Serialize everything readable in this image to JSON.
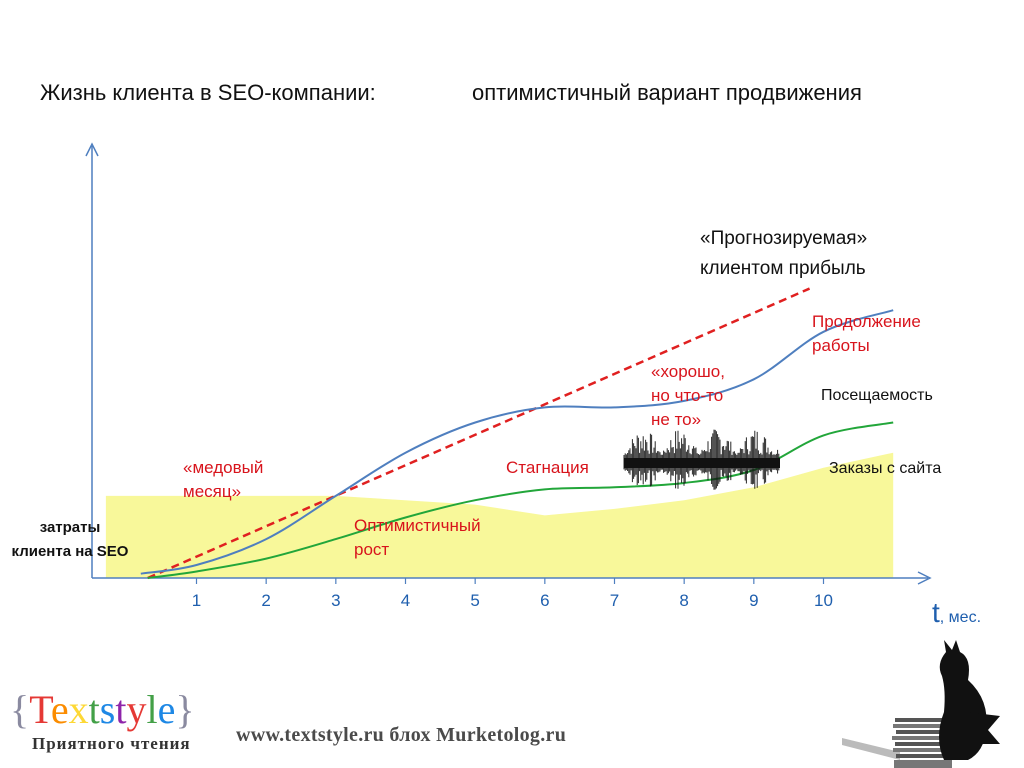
{
  "title": {
    "left": "Жизнь клиента в SEO-компании:",
    "right": "оптимистичный вариант продвижения"
  },
  "chart_data": {
    "type": "line",
    "x_ticks": [
      1,
      2,
      3,
      4,
      5,
      6,
      7,
      8,
      9,
      10
    ],
    "x_unit_symbol": "t",
    "x_unit_label": ", мес.",
    "xlim": [
      -0.5,
      11.5
    ],
    "ylim": [
      0,
      10
    ],
    "series": [
      {
        "name": "«Прогнозируемая» клиентом прибыль",
        "style": "dashed",
        "color": "#e02020",
        "points": [
          [
            0.3,
            0.0
          ],
          [
            9.8,
            6.7
          ]
        ]
      },
      {
        "name": "Посещаемость",
        "style": "solid",
        "color": "#4f7fbf",
        "points": [
          [
            0.2,
            0.1
          ],
          [
            1.0,
            0.3
          ],
          [
            2.0,
            0.9
          ],
          [
            3.0,
            1.9
          ],
          [
            4.0,
            2.9
          ],
          [
            5.0,
            3.6
          ],
          [
            6.0,
            3.95
          ],
          [
            7.0,
            3.95
          ],
          [
            8.0,
            4.1
          ],
          [
            9.0,
            4.6
          ],
          [
            10.0,
            5.7
          ],
          [
            11.0,
            6.2
          ]
        ]
      },
      {
        "name": "Заказы с сайта",
        "style": "solid",
        "color": "#22a63a",
        "points": [
          [
            0.3,
            0.0
          ],
          [
            1.0,
            0.15
          ],
          [
            2.0,
            0.45
          ],
          [
            3.0,
            0.9
          ],
          [
            4.0,
            1.4
          ],
          [
            5.0,
            1.8
          ],
          [
            6.0,
            2.05
          ],
          [
            7.0,
            2.1
          ],
          [
            8.0,
            2.2
          ],
          [
            9.0,
            2.5
          ],
          [
            10.0,
            3.3
          ],
          [
            11.0,
            3.6
          ]
        ]
      },
      {
        "name": "затраты клиента на SEO",
        "style": "area",
        "color": "#f8f89a",
        "points": [
          [
            -0.3,
            1.9
          ],
          [
            0.5,
            1.9
          ],
          [
            3.0,
            1.9
          ],
          [
            5.0,
            1.7
          ],
          [
            6.0,
            1.45
          ],
          [
            7.0,
            1.6
          ],
          [
            8.0,
            1.8
          ],
          [
            9.0,
            2.1
          ],
          [
            10.0,
            2.55
          ],
          [
            11.0,
            2.9
          ],
          [
            11.0,
            0
          ],
          [
            -0.3,
            0
          ]
        ]
      }
    ]
  },
  "annotations": {
    "forecast": [
      "«Прогнозируемая»",
      "клиентом прибыль"
    ],
    "continuation": [
      "Продолжение",
      "работы"
    ],
    "good_but": [
      "«хорошо,",
      "но что-то",
      "не то»"
    ],
    "honeymoon": [
      "«медовый",
      "месяц»"
    ],
    "stagnation": "Стагнация",
    "optimistic_growth": [
      "Оптимистичный",
      "рост"
    ],
    "traffic": "Посещаемость",
    "orders": "Заказы с сайта",
    "costs": [
      "затраты",
      "клиента на SEO"
    ]
  },
  "colors": {
    "axis": "#4f7fbf",
    "tick_label": "#1f5fae",
    "red_text": "#d8141c",
    "dashed_line": "#e02020",
    "traffic_line": "#4f7fbf",
    "orders_line": "#22a63a",
    "cost_area": "#f8f89a"
  },
  "footer": {
    "logo_text": "Textstyle",
    "logo_tagline": "Приятного чтения",
    "url_line": "www.textstyle.ru блох Murketolog.ru"
  },
  "icons": {
    "noise": "waveform-noise-icon",
    "cat": "cat-on-books-icon"
  }
}
